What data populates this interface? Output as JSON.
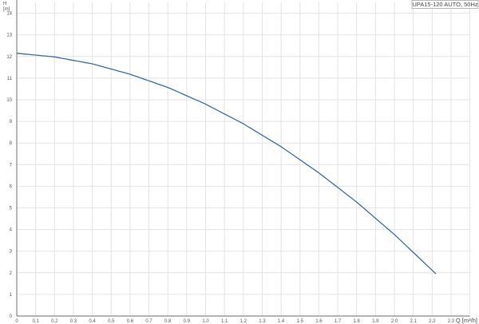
{
  "chart_data": {
    "type": "line",
    "legend": "UPA15-120 AUTO, 50Hz",
    "legend_position": "top-right",
    "xlabel": "Q [m³/h]",
    "ylabel": "H [m]",
    "ylabel_symbol": "H",
    "ylabel_unit": "[m]",
    "xlim": [
      0,
      2.4
    ],
    "ylim": [
      0,
      14.5
    ],
    "grid": true,
    "x_ticks": [
      "0",
      "0.1",
      "0.2",
      "0.3",
      "0.4",
      "0.5",
      "0.6",
      "0.7",
      "0.8",
      "0.9",
      "1.0",
      "1.1",
      "1.2",
      "1.3",
      "1.4",
      "1.5",
      "1.6",
      "1.7",
      "1.8",
      "1.9",
      "2.0",
      "2.1",
      "2.2",
      "2.3"
    ],
    "y_ticks": [
      "0",
      "1",
      "2",
      "3",
      "4",
      "5",
      "6",
      "7",
      "8",
      "9",
      "10",
      "11",
      "12",
      "13",
      "14"
    ],
    "series": [
      {
        "color": "#3b6a9a",
        "x": [
          0,
          0.2,
          0.4,
          0.6,
          0.8,
          1.0,
          1.2,
          1.4,
          1.6,
          1.8,
          2.0,
          2.22
        ],
        "y": [
          12.15,
          11.98,
          11.66,
          11.18,
          10.57,
          9.8,
          8.89,
          7.83,
          6.62,
          5.27,
          3.77,
          1.95
        ]
      }
    ]
  }
}
